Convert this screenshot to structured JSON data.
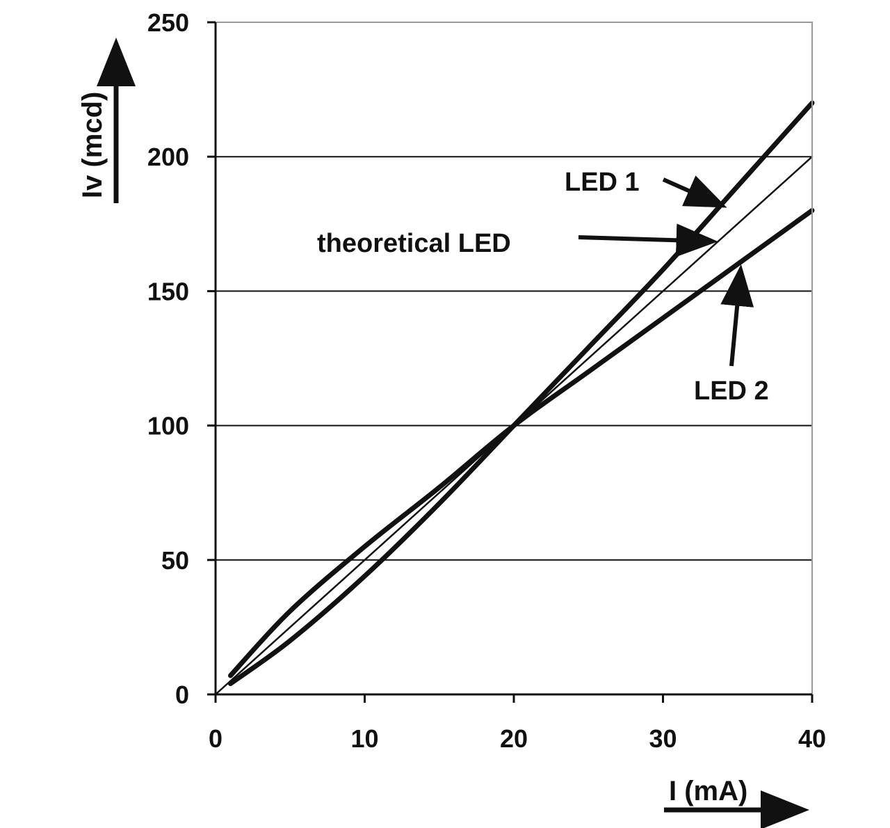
{
  "chart_data": {
    "type": "line",
    "xlabel": "I (mA)",
    "ylabel": "Iv (mcd)",
    "xlim": [
      0,
      40
    ],
    "ylim": [
      0,
      250
    ],
    "x_ticks": [
      0,
      10,
      20,
      30,
      40
    ],
    "y_ticks": [
      0,
      50,
      100,
      150,
      200,
      250
    ],
    "grid": "horizontal",
    "series": [
      {
        "name": "LED 1",
        "x": [
          1,
          5,
          10,
          15,
          20,
          25,
          30,
          35,
          40
        ],
        "y": [
          4,
          20,
          44,
          71,
          100,
          129,
          158,
          189,
          220
        ]
      },
      {
        "name": "theoretical LED",
        "x": [
          0,
          40
        ],
        "y": [
          0,
          200
        ]
      },
      {
        "name": "LED 2",
        "x": [
          1,
          5,
          10,
          15,
          20,
          25,
          30,
          35,
          40
        ],
        "y": [
          7,
          31,
          55,
          77,
          100,
          120,
          140,
          160,
          180
        ]
      }
    ],
    "annotations": [
      {
        "text": "LED 1",
        "points_to": "LED 1",
        "at_x": 33.5
      },
      {
        "text": "theoretical LED",
        "points_to": "theoretical LED",
        "at_x": 33.5
      },
      {
        "text": "LED 2",
        "points_to": "LED 2",
        "at_x": 35
      }
    ]
  }
}
